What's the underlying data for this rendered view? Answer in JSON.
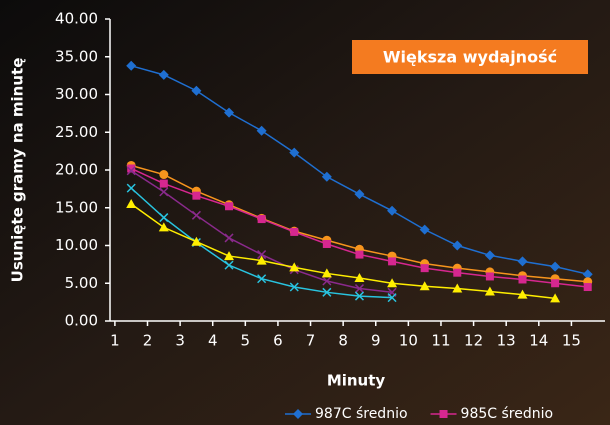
{
  "chart_data": {
    "type": "line",
    "annotation": "Większa wydajność",
    "x_label": "Minuty",
    "y_label": "Usunięte gramy na minutę",
    "x": [
      1.5,
      2.5,
      3.5,
      4.5,
      5.5,
      6.5,
      7.5,
      8.5,
      9.5,
      10.5,
      11.5,
      12.5,
      13.5,
      14.5,
      15.5
    ],
    "series": [
      {
        "name": "987C średnio",
        "color": "#1f6fd1",
        "marker": "diamond",
        "values": [
          33.8,
          32.6,
          30.5,
          27.6,
          25.2,
          22.3,
          19.1,
          16.8,
          14.6,
          12.1,
          10.0,
          8.7,
          7.9,
          7.2,
          6.2
        ]
      },
      {
        "color": "#f7941d",
        "marker": "circle",
        "values": [
          20.6,
          19.4,
          17.2,
          15.4,
          13.6,
          11.9,
          10.7,
          9.5,
          8.6,
          7.6,
          7.0,
          6.5,
          6.0,
          5.6,
          5.2
        ]
      },
      {
        "name": "985C średnio",
        "color": "#d6278f",
        "marker": "square",
        "values": [
          20.2,
          18.2,
          16.6,
          15.2,
          13.5,
          11.8,
          10.2,
          8.8,
          7.9,
          7.0,
          6.4,
          5.9,
          5.5,
          5.0,
          4.5
        ]
      },
      {
        "color": "#8a2a8c",
        "marker": "x",
        "values": [
          19.9,
          17.1,
          14.0,
          11.0,
          8.8,
          6.8,
          5.3,
          4.3,
          3.8,
          null,
          null,
          null,
          null,
          null,
          null
        ]
      },
      {
        "color": "#29c4e0",
        "marker": "x",
        "values": [
          17.6,
          13.7,
          10.4,
          7.4,
          5.6,
          4.5,
          3.8,
          3.3,
          3.1,
          null,
          null,
          null,
          null,
          null,
          null
        ]
      },
      {
        "color": "#ffee00",
        "marker": "triangle",
        "values": [
          15.5,
          12.4,
          10.5,
          8.6,
          8.0,
          7.1,
          6.3,
          5.7,
          5.0,
          4.6,
          4.3,
          3.9,
          3.5,
          3.0,
          null
        ]
      }
    ],
    "xlim": [
      0.85,
      16.03
    ],
    "xticks": [
      1,
      2,
      3,
      4,
      5,
      6,
      7,
      8,
      9,
      10,
      11,
      12,
      13,
      14,
      15
    ],
    "ylim": [
      0,
      40
    ],
    "yticks": [
      {
        "value": 0,
        "label": "0.00"
      },
      {
        "value": 5,
        "label": "5.00"
      },
      {
        "value": 10,
        "label": "10.00"
      },
      {
        "value": 15,
        "label": "15.00"
      },
      {
        "value": 20,
        "label": "20.00"
      },
      {
        "value": 25,
        "label": "25.00"
      },
      {
        "value": 30,
        "label": "30.00"
      },
      {
        "value": 35,
        "label": "35.00"
      },
      {
        "value": 40,
        "label": "40.00"
      }
    ],
    "grid": false
  }
}
